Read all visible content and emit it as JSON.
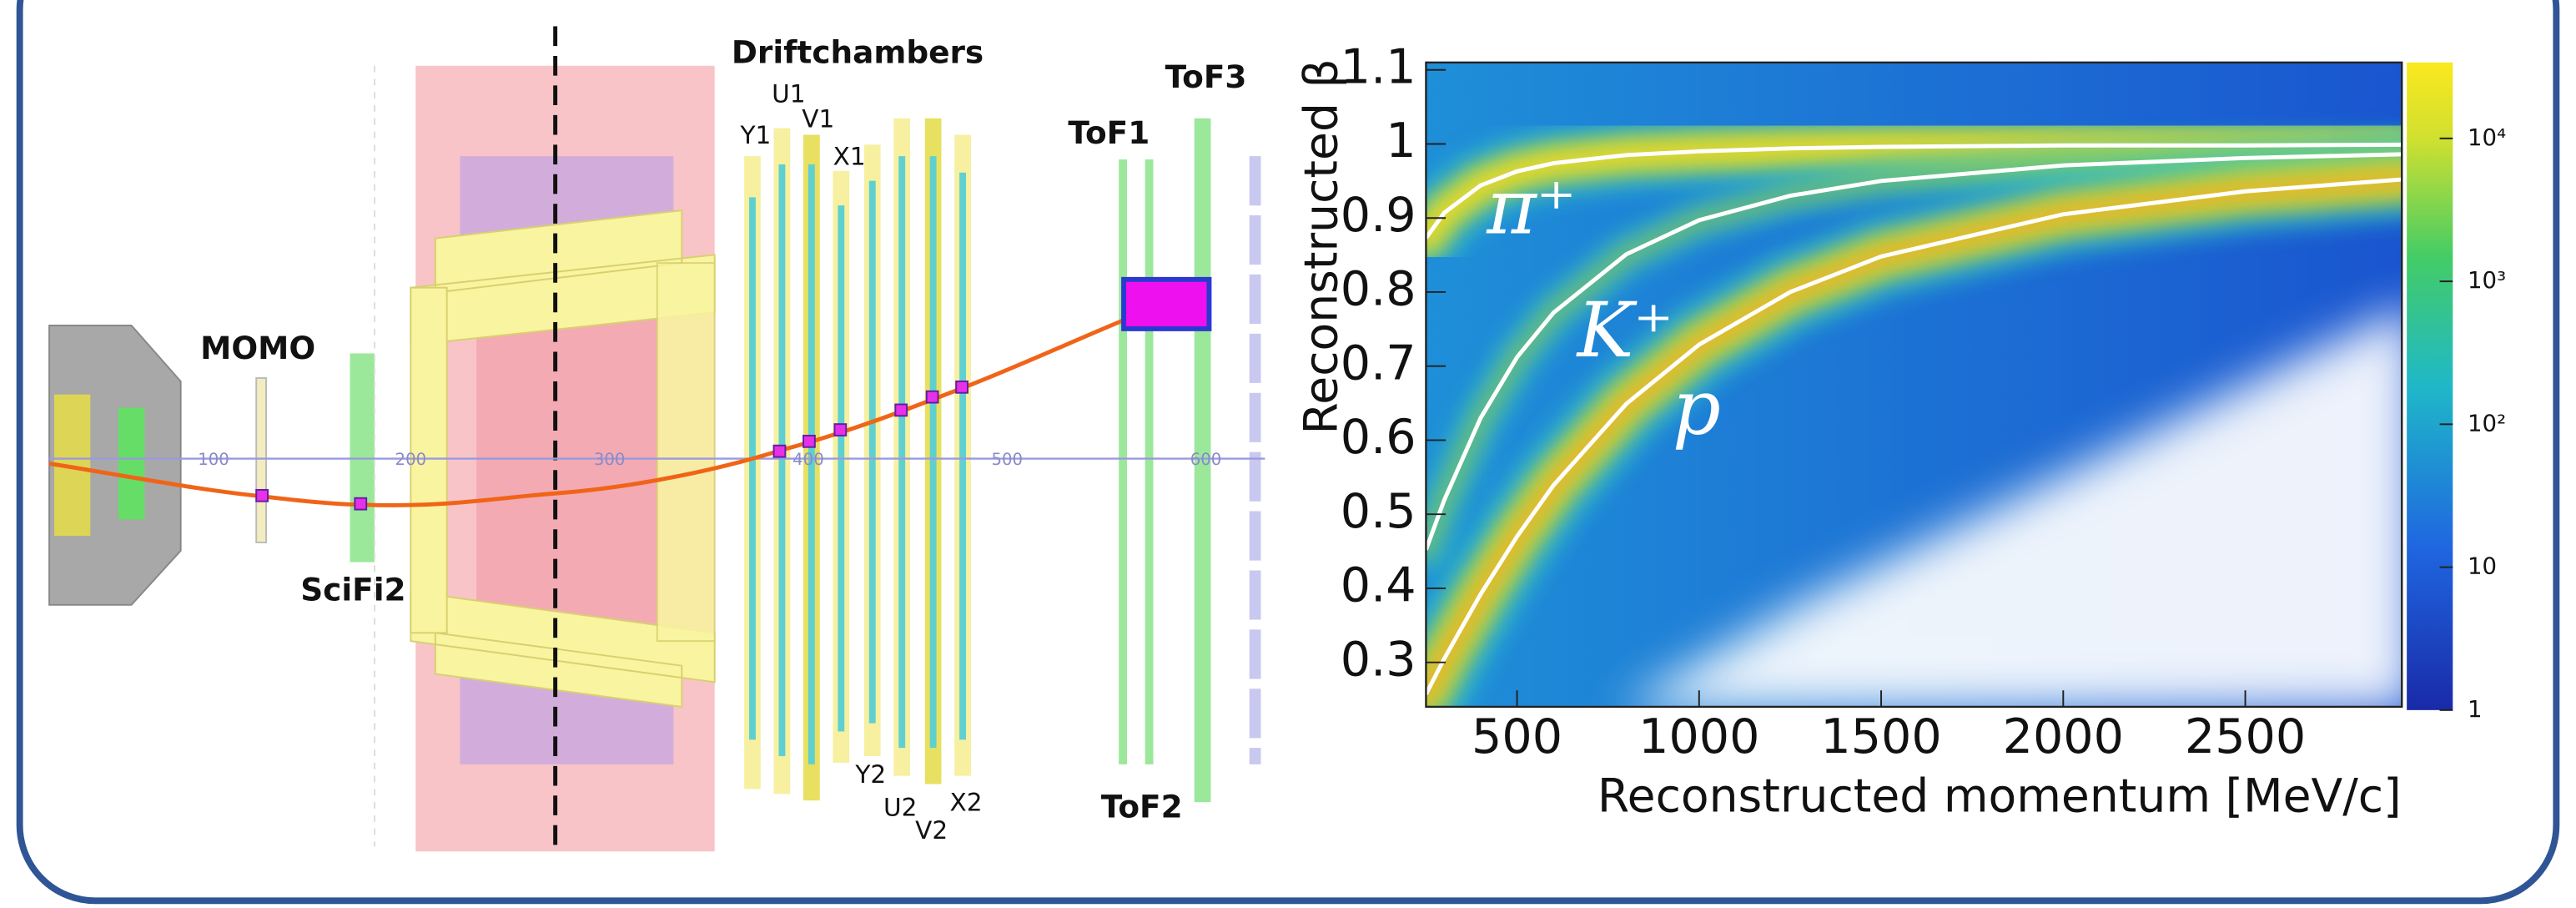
{
  "diagram": {
    "title": "Driftchambers",
    "planes": [
      "Y1",
      "U1",
      "V1",
      "X1",
      "Y2",
      "U2",
      "V2",
      "X2"
    ],
    "detectors": [
      "MOMO",
      "SciFi2",
      "ToF1",
      "ToF2",
      "ToF3"
    ],
    "scale": [
      100,
      200,
      300,
      400,
      500,
      600
    ]
  },
  "chart_data": {
    "type": "line",
    "xlabel": "Reconstructed momentum [MeV/c]",
    "ylabel": "Reconstructed β",
    "xlim": [
      250,
      2930
    ],
    "ylim": [
      0.24,
      1.11
    ],
    "xticks": [
      500,
      1000,
      1500,
      2000,
      2500
    ],
    "yticks": [
      0.3,
      0.4,
      0.5,
      0.6,
      0.7,
      0.8,
      0.9,
      1,
      1.1
    ],
    "x": [
      250,
      300,
      400,
      500,
      600,
      800,
      1000,
      1250,
      1500,
      2000,
      2500,
      2930
    ],
    "series": [
      {
        "name": "π⁺",
        "color": "#ffffff",
        "values": [
          0.873,
          0.907,
          0.944,
          0.963,
          0.974,
          0.985,
          0.99,
          0.994,
          0.996,
          0.998,
          0.998,
          0.999
        ]
      },
      {
        "name": "K⁺",
        "color": "#ffffff",
        "values": [
          0.452,
          0.519,
          0.63,
          0.712,
          0.772,
          0.851,
          0.897,
          0.93,
          0.95,
          0.971,
          0.981,
          0.986
        ]
      },
      {
        "name": "p",
        "color": "#ffffff",
        "values": [
          0.257,
          0.305,
          0.392,
          0.47,
          0.539,
          0.649,
          0.729,
          0.8,
          0.848,
          0.905,
          0.936,
          0.952
        ]
      }
    ],
    "colorbar": {
      "log": true,
      "lim": [
        1,
        34000
      ],
      "ticks": [
        1,
        10,
        {
          "value": 100,
          "label": "10²"
        },
        {
          "value": 1000,
          "label": "10³"
        },
        {
          "value": 10000,
          "label": "10⁴"
        }
      ]
    }
  }
}
